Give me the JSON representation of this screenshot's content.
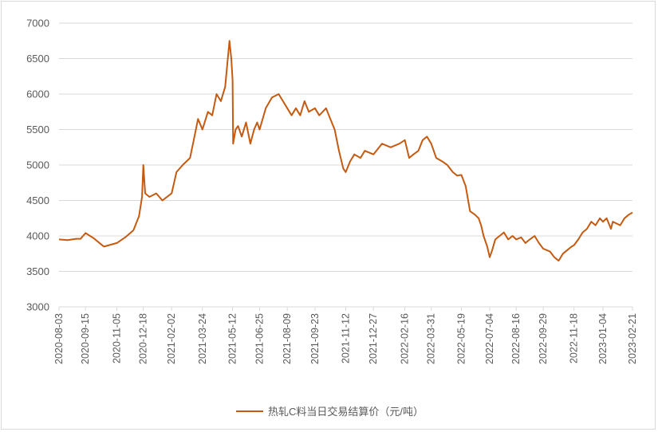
{
  "chart_data": {
    "type": "line",
    "title": "",
    "xlabel": "",
    "ylabel": "",
    "ylim": [
      3000,
      7000
    ],
    "yticks": [
      3000,
      3500,
      4000,
      4500,
      5000,
      5500,
      6000,
      6500,
      7000
    ],
    "xticks": [
      "2020-08-03",
      "2020-09-15",
      "2020-11-05",
      "2020-12-18",
      "2021-02-02",
      "2021-03-24",
      "2021-05-12",
      "2021-06-25",
      "2021-08-09",
      "2021-09-23",
      "2021-11-12",
      "2021-12-27",
      "2022-02-16",
      "2022-03-31",
      "2022-05-19",
      "2022-07-04",
      "2022-08-16",
      "2022-09-29",
      "2022-11-18",
      "2023-01-04",
      "2023-02-21"
    ],
    "grid": true,
    "legend_position": "bottom",
    "series": [
      {
        "name": "热轧C料当日交易结算价（元/吨）",
        "color": "#c55a11",
        "x": [
          "2020-08-03",
          "2020-08-17",
          "2020-08-31",
          "2020-09-07",
          "2020-09-15",
          "2020-09-28",
          "2020-10-15",
          "2020-11-05",
          "2020-11-20",
          "2020-12-02",
          "2020-12-11",
          "2020-12-16",
          "2020-12-18",
          "2020-12-21",
          "2020-12-28",
          "2021-01-08",
          "2021-01-18",
          "2021-02-02",
          "2021-02-10",
          "2021-02-20",
          "2021-03-04",
          "2021-03-10",
          "2021-03-17",
          "2021-03-24",
          "2021-04-02",
          "2021-04-09",
          "2021-04-16",
          "2021-04-23",
          "2021-04-30",
          "2021-05-07",
          "2021-05-10",
          "2021-05-12",
          "2021-05-13",
          "2021-05-17",
          "2021-05-21",
          "2021-05-27",
          "2021-06-03",
          "2021-06-10",
          "2021-06-16",
          "2021-06-21",
          "2021-06-25",
          "2021-07-05",
          "2021-07-15",
          "2021-07-26",
          "2021-08-02",
          "2021-08-09",
          "2021-08-16",
          "2021-08-23",
          "2021-08-30",
          "2021-09-06",
          "2021-09-13",
          "2021-09-23",
          "2021-09-30",
          "2021-10-11",
          "2021-10-18",
          "2021-10-25",
          "2021-11-01",
          "2021-11-08",
          "2021-11-12",
          "2021-11-19",
          "2021-11-26",
          "2021-12-06",
          "2021-12-13",
          "2021-12-27",
          "2022-01-10",
          "2022-01-24",
          "2022-02-07",
          "2022-02-16",
          "2022-02-23",
          "2022-03-02",
          "2022-03-10",
          "2022-03-17",
          "2022-03-24",
          "2022-03-31",
          "2022-04-08",
          "2022-04-18",
          "2022-04-26",
          "2022-05-05",
          "2022-05-12",
          "2022-05-19",
          "2022-05-26",
          "2022-06-02",
          "2022-06-10",
          "2022-06-16",
          "2022-06-20",
          "2022-06-24",
          "2022-06-30",
          "2022-07-04",
          "2022-07-08",
          "2022-07-13",
          "2022-07-20",
          "2022-07-27",
          "2022-08-03",
          "2022-08-10",
          "2022-08-16",
          "2022-08-24",
          "2022-08-31",
          "2022-09-07",
          "2022-09-15",
          "2022-09-22",
          "2022-09-29",
          "2022-10-10",
          "2022-10-17",
          "2022-10-24",
          "2022-10-31",
          "2022-11-07",
          "2022-11-14",
          "2022-11-18",
          "2022-11-25",
          "2022-12-02",
          "2022-12-09",
          "2022-12-16",
          "2022-12-23",
          "2022-12-30",
          "2023-01-04",
          "2023-01-10",
          "2023-01-17",
          "2023-01-20",
          "2023-02-01",
          "2023-02-08",
          "2023-02-15",
          "2023-02-21"
        ],
        "values": [
          3950,
          3940,
          3960,
          3960,
          4040,
          3970,
          3850,
          3900,
          3990,
          4080,
          4280,
          4550,
          5000,
          4600,
          4550,
          4600,
          4500,
          4600,
          4900,
          5000,
          5100,
          5350,
          5650,
          5500,
          5750,
          5700,
          6000,
          5900,
          6100,
          6750,
          6500,
          6200,
          5300,
          5500,
          5550,
          5400,
          5600,
          5300,
          5500,
          5600,
          5500,
          5800,
          5950,
          6000,
          5900,
          5800,
          5700,
          5800,
          5700,
          5900,
          5750,
          5800,
          5700,
          5800,
          5650,
          5500,
          5200,
          4950,
          4900,
          5050,
          5150,
          5100,
          5200,
          5150,
          5300,
          5250,
          5300,
          5350,
          5100,
          5150,
          5200,
          5350,
          5400,
          5300,
          5100,
          5050,
          5000,
          4900,
          4850,
          4860,
          4700,
          4350,
          4300,
          4250,
          4150,
          4000,
          3850,
          3700,
          3800,
          3950,
          4000,
          4050,
          3950,
          4000,
          3950,
          3980,
          3900,
          3950,
          4000,
          3900,
          3820,
          3780,
          3700,
          3650,
          3750,
          3800,
          3850,
          3870,
          3950,
          4050,
          4100,
          4200,
          4150,
          4250,
          4200,
          4250,
          4100,
          4200,
          4150,
          4250,
          4300,
          4330
        ]
      }
    ]
  }
}
